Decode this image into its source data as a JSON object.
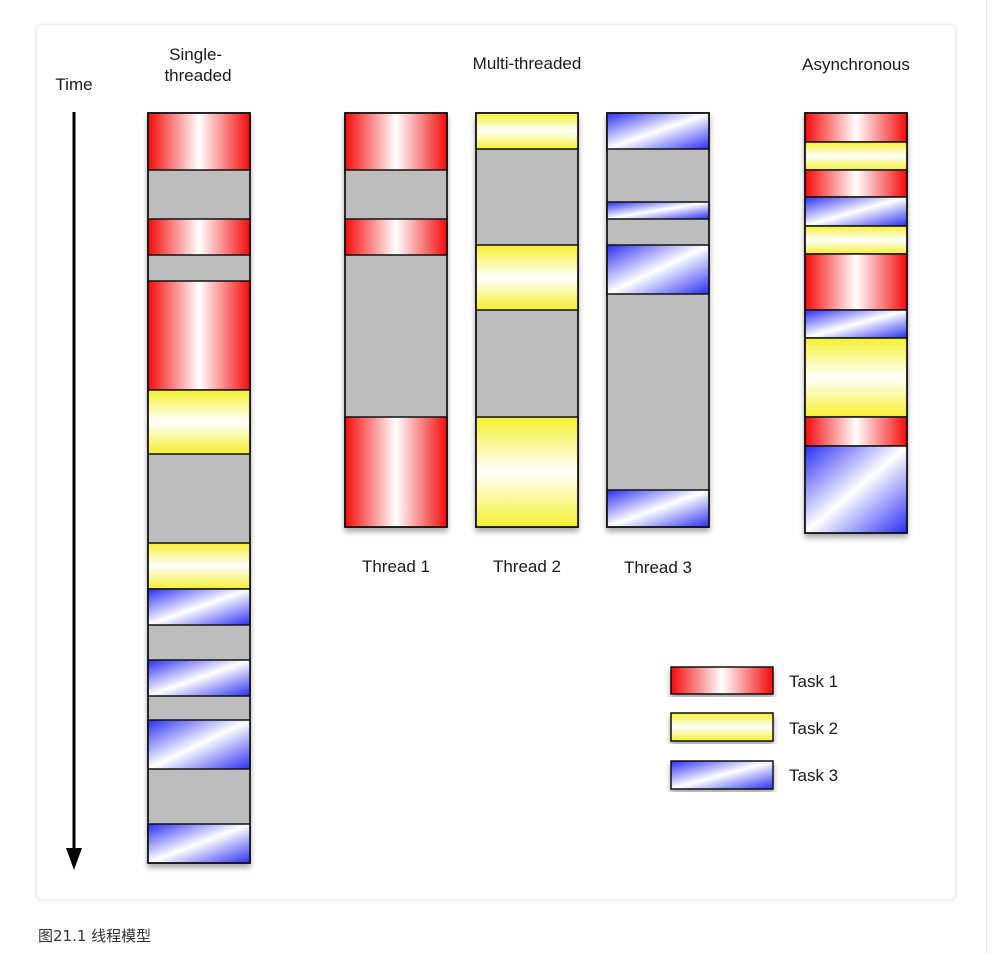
{
  "diagram": {
    "time_label": "Time",
    "models": [
      {
        "id": "single",
        "heading": [
          "Single-",
          "threaded"
        ],
        "columns": [
          {
            "label": "",
            "segments": [
              {
                "task": 1,
                "start": 0,
                "end": 57
              },
              {
                "task": 1,
                "start": 106,
                "end": 142
              },
              {
                "task": 1,
                "start": 168,
                "end": 277
              },
              {
                "task": 2,
                "start": 277,
                "end": 341
              },
              {
                "task": 2,
                "start": 430,
                "end": 476
              },
              {
                "task": 3,
                "start": 476,
                "end": 512
              },
              {
                "task": 3,
                "start": 547,
                "end": 583
              },
              {
                "task": 3,
                "start": 607,
                "end": 656
              },
              {
                "task": 3,
                "start": 711,
                "end": 750
              }
            ]
          }
        ]
      },
      {
        "id": "multi",
        "heading": [
          "Multi-threaded"
        ],
        "columns": [
          {
            "label": "Thread 1",
            "segments": [
              {
                "task": 1,
                "start": 0,
                "end": 57
              },
              {
                "task": 1,
                "start": 106,
                "end": 142
              },
              {
                "task": 1,
                "start": 304,
                "end": 414
              }
            ]
          },
          {
            "label": "Thread 2",
            "segments": [
              {
                "task": 2,
                "start": 0,
                "end": 36
              },
              {
                "task": 2,
                "start": 132,
                "end": 197
              },
              {
                "task": 2,
                "start": 304,
                "end": 414
              }
            ]
          },
          {
            "label": "Thread 3",
            "segments": [
              {
                "task": 3,
                "start": 0,
                "end": 36
              },
              {
                "task": 3,
                "start": 89,
                "end": 106
              },
              {
                "task": 3,
                "start": 132,
                "end": 181
              },
              {
                "task": 3,
                "start": 377,
                "end": 414
              }
            ]
          }
        ]
      },
      {
        "id": "async",
        "heading": [
          "Asynchronous"
        ],
        "columns": [
          {
            "label": "",
            "segments": [
              {
                "task": 1,
                "start": 0,
                "end": 29
              },
              {
                "task": 2,
                "start": 29,
                "end": 57
              },
              {
                "task": 1,
                "start": 57,
                "end": 84
              },
              {
                "task": 3,
                "start": 84,
                "end": 113
              },
              {
                "task": 2,
                "start": 113,
                "end": 141
              },
              {
                "task": 1,
                "start": 141,
                "end": 197
              },
              {
                "task": 3,
                "start": 197,
                "end": 225
              },
              {
                "task": 2,
                "start": 225,
                "end": 304
              },
              {
                "task": 1,
                "start": 304,
                "end": 333
              },
              {
                "task": 3,
                "start": 333,
                "end": 420
              }
            ]
          }
        ]
      }
    ],
    "legend": [
      {
        "task": 1,
        "label": "Task 1"
      },
      {
        "task": 2,
        "label": "Task 2"
      },
      {
        "task": 3,
        "label": "Task 3"
      }
    ],
    "colors": {
      "task1": "#f40a0a",
      "task2": "#f5f030",
      "task3": "#2a2ef2",
      "idle": "#bdbdbd",
      "outline": "#111111"
    }
  },
  "caption": "图21.1 线程模型"
}
